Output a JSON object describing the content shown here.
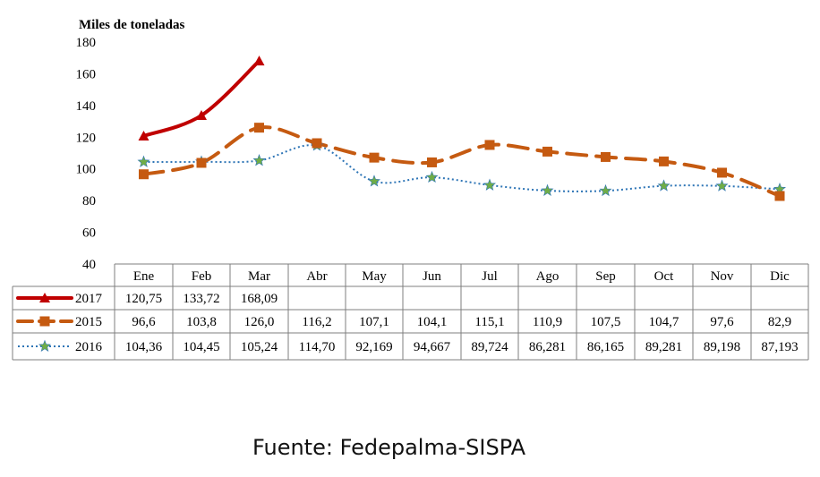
{
  "chart_data": {
    "type": "line",
    "ylabel": "Miles de toneladas",
    "ylim": [
      40,
      180
    ],
    "yticks": [
      40,
      60,
      80,
      100,
      120,
      140,
      160,
      180
    ],
    "categories": [
      "Ene",
      "Feb",
      "Mar",
      "Abr",
      "May",
      "Jun",
      "Jul",
      "Ago",
      "Sep",
      "Oct",
      "Nov",
      "Dic"
    ],
    "series": [
      {
        "name": "2017",
        "color": "#c00000",
        "style": "solid",
        "marker": "triangle",
        "values": [
          120.75,
          133.72,
          168.09,
          null,
          null,
          null,
          null,
          null,
          null,
          null,
          null,
          null
        ],
        "labels": [
          "120,75",
          "133,72",
          "168,09",
          "",
          "",
          "",
          "",
          "",
          "",
          "",
          "",
          ""
        ]
      },
      {
        "name": "2015",
        "color": "#c55a11",
        "style": "dashed",
        "marker": "square",
        "values": [
          96.6,
          103.8,
          126.0,
          116.2,
          107.1,
          104.1,
          115.1,
          110.9,
          107.5,
          104.7,
          97.6,
          82.9
        ],
        "labels": [
          "96,6",
          "103,8",
          "126,0",
          "116,2",
          "107,1",
          "104,1",
          "115,1",
          "110,9",
          "107,5",
          "104,7",
          "97,6",
          "82,9"
        ]
      },
      {
        "name": "2016",
        "color": "#2e75b6",
        "marker_color": "#70ad47",
        "style": "dotted",
        "marker": "star",
        "values": [
          104.36,
          104.45,
          105.24,
          114.7,
          92.169,
          94.667,
          89.724,
          86.281,
          86.165,
          89.281,
          89.198,
          87.193
        ],
        "labels": [
          "104,36",
          "104,45",
          "105,24",
          "114,70",
          "92,169",
          "94,667",
          "89,724",
          "86,281",
          "86,165",
          "89,281",
          "89,198",
          "87,193"
        ]
      }
    ],
    "legend": "data-table"
  },
  "source_text": "Fuente: Fedepalma-SISPA"
}
